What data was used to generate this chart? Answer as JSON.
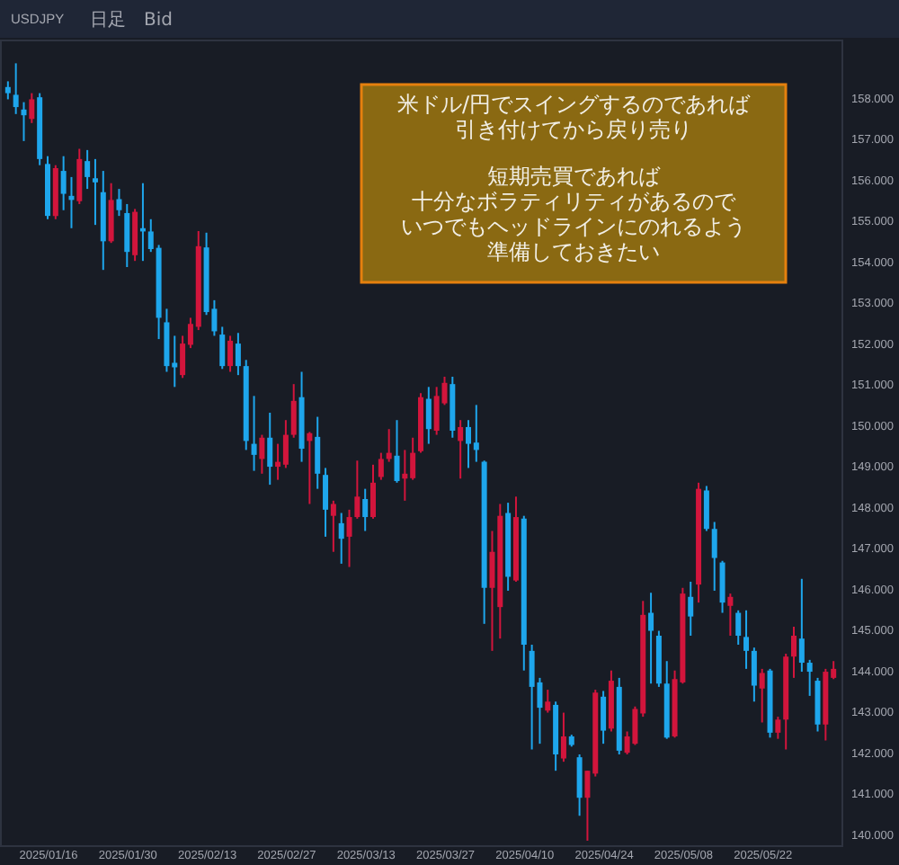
{
  "chart_data": {
    "type": "candlestick",
    "title": "USDJPY",
    "annotations": [
      "日足",
      "Bid",
      "米ドル/円でスイングするのであれば",
      "引き付けてから戻り売り",
      "短期売買であれば",
      "十分なボラティリティがあるので",
      "いつでもヘッドラインにのれるよう",
      "準備しておきたい"
    ],
    "categories": [
      null,
      null,
      null,
      null,
      null,
      "2025/01/16",
      null,
      null,
      null,
      null,
      null,
      null,
      null,
      null,
      null,
      "2025/01/30",
      null,
      null,
      null,
      null,
      null,
      null,
      null,
      null,
      null,
      "2025/02/13",
      null,
      null,
      null,
      null,
      null,
      null,
      null,
      null,
      null,
      "2025/02/27",
      null,
      null,
      null,
      null,
      null,
      null,
      null,
      null,
      null,
      "2025/03/13",
      null,
      null,
      null,
      null,
      null,
      null,
      null,
      null,
      null,
      "2025/03/27",
      null,
      null,
      null,
      null,
      null,
      null,
      null,
      null,
      null,
      "2025/04/10",
      null,
      null,
      null,
      null,
      null,
      null,
      null,
      null,
      null,
      "2025/04/24",
      null,
      null,
      null,
      null,
      null,
      null,
      null,
      null,
      null,
      "2025/05/08",
      null,
      null,
      null,
      null,
      null,
      null,
      null,
      null,
      null,
      "2025/05/22",
      null,
      null,
      null,
      null,
      null,
      null,
      null,
      null,
      null
    ],
    "ohlc": [
      [
        158.26,
        158.4,
        157.96,
        158.11
      ],
      [
        158.07,
        158.84,
        157.6,
        157.77
      ],
      [
        157.71,
        157.89,
        156.94,
        157.57
      ],
      [
        157.48,
        158.11,
        157.38,
        157.96
      ],
      [
        158.01,
        158.11,
        156.35,
        156.5
      ],
      [
        156.38,
        156.57,
        155.03,
        155.11
      ],
      [
        155.11,
        156.35,
        155.03,
        156.28
      ],
      [
        156.21,
        156.57,
        155.25,
        155.65
      ],
      [
        155.6,
        156.06,
        154.81,
        155.5
      ],
      [
        155.47,
        156.75,
        155.4,
        156.5
      ],
      [
        156.45,
        156.72,
        155.77,
        156.06
      ],
      [
        156.03,
        156.5,
        154.89,
        155.93
      ],
      [
        155.69,
        156.21,
        153.79,
        154.49
      ],
      [
        154.49,
        155.91,
        154.45,
        155.5
      ],
      [
        155.52,
        155.77,
        155.11,
        155.25
      ],
      [
        155.18,
        155.4,
        153.86,
        154.23
      ],
      [
        154.15,
        155.28,
        154.01,
        155.21
      ],
      [
        154.81,
        155.91,
        154.01,
        154.73
      ],
      [
        154.73,
        155.03,
        154.23,
        154.3
      ],
      [
        154.33,
        154.4,
        152.1,
        152.62
      ],
      [
        152.51,
        152.84,
        151.3,
        151.44
      ],
      [
        151.52,
        152.18,
        150.93,
        151.41
      ],
      [
        151.22,
        152.18,
        151.15,
        151.99
      ],
      [
        151.96,
        152.62,
        151.88,
        152.47
      ],
      [
        152.4,
        154.74,
        152.32,
        154.37
      ],
      [
        154.34,
        154.7,
        152.69,
        152.76
      ],
      [
        152.84,
        153.05,
        152.18,
        152.29
      ],
      [
        152.21,
        152.4,
        151.37,
        151.44
      ],
      [
        151.44,
        152.18,
        151.3,
        152.06
      ],
      [
        151.99,
        152.25,
        151.22,
        151.44
      ],
      [
        151.44,
        151.59,
        149.39,
        149.61
      ],
      [
        149.54,
        150.71,
        148.88,
        149.27
      ],
      [
        149.17,
        149.76,
        148.81,
        149.69
      ],
      [
        149.69,
        150.3,
        148.54,
        148.98
      ],
      [
        148.98,
        149.54,
        148.66,
        149.1
      ],
      [
        149.03,
        150.12,
        148.95,
        149.76
      ],
      [
        149.76,
        151.0,
        149.69,
        150.59
      ],
      [
        150.68,
        151.3,
        149.1,
        149.42
      ],
      [
        149.61,
        149.83,
        148.07,
        149.8
      ],
      [
        149.71,
        150.2,
        148.44,
        148.81
      ],
      [
        148.78,
        148.95,
        147.27,
        147.93
      ],
      [
        147.78,
        148.15,
        146.9,
        148.07
      ],
      [
        147.6,
        147.85,
        146.61,
        147.22
      ],
      [
        147.27,
        147.93,
        146.53,
        147.75
      ],
      [
        147.75,
        149.13,
        147.71,
        148.25
      ],
      [
        148.19,
        148.44,
        147.41,
        147.75
      ],
      [
        147.75,
        149.03,
        147.71,
        148.59
      ],
      [
        148.73,
        149.32,
        148.66,
        149.17
      ],
      [
        149.17,
        149.9,
        149.1,
        149.32
      ],
      [
        149.25,
        150.12,
        148.59,
        148.63
      ],
      [
        148.69,
        149.39,
        148.15,
        148.81
      ],
      [
        148.7,
        149.69,
        148.66,
        149.32
      ],
      [
        149.36,
        150.78,
        149.32,
        150.68
      ],
      [
        150.64,
        150.93,
        149.54,
        149.9
      ],
      [
        149.86,
        150.93,
        149.76,
        150.71
      ],
      [
        150.53,
        151.18,
        150.49,
        151.03
      ],
      [
        151.0,
        151.18,
        149.69,
        149.86
      ],
      [
        149.61,
        150.12,
        148.69,
        149.95
      ],
      [
        149.95,
        150.12,
        148.95,
        149.54
      ],
      [
        149.57,
        150.49,
        149.1,
        149.39
      ],
      [
        149.1,
        149.13,
        145.14,
        146.02
      ],
      [
        146.02,
        147.41,
        144.48,
        146.9
      ],
      [
        145.55,
        148.07,
        144.78,
        147.78
      ],
      [
        147.85,
        148.1,
        145.95,
        146.29
      ],
      [
        146.2,
        148.25,
        146.17,
        147.75
      ],
      [
        147.71,
        147.78,
        144.0,
        144.63
      ],
      [
        144.48,
        144.63,
        142.07,
        143.6
      ],
      [
        143.71,
        143.82,
        142.21,
        143.09
      ],
      [
        143.02,
        143.53,
        142.97,
        143.24
      ],
      [
        143.16,
        143.24,
        141.55,
        141.95
      ],
      [
        141.85,
        142.97,
        141.77,
        142.39
      ],
      [
        142.39,
        142.43,
        142.14,
        142.18
      ],
      [
        141.88,
        141.95,
        140.45,
        140.89
      ],
      [
        140.89,
        141.55,
        139.84,
        141.55
      ],
      [
        141.48,
        143.53,
        141.41,
        143.46
      ],
      [
        143.36,
        143.5,
        142.21,
        142.53
      ],
      [
        142.58,
        144.0,
        142.51,
        143.75
      ],
      [
        143.6,
        143.82,
        141.95,
        142.04
      ],
      [
        141.99,
        142.51,
        141.95,
        142.39
      ],
      [
        142.21,
        143.12,
        142.18,
        143.06
      ],
      [
        142.95,
        145.7,
        142.87,
        145.36
      ],
      [
        145.41,
        145.9,
        143.68,
        144.97
      ],
      [
        144.85,
        144.97,
        143.6,
        143.68
      ],
      [
        143.68,
        144.23,
        142.33,
        142.36
      ],
      [
        142.39,
        144.0,
        142.36,
        143.79
      ],
      [
        143.71,
        146.02,
        143.68,
        145.88
      ],
      [
        145.8,
        146.17,
        144.85,
        145.32
      ],
      [
        146.1,
        148.59,
        145.66,
        148.44
      ],
      [
        148.4,
        148.51,
        147.41,
        147.46
      ],
      [
        147.46,
        147.63,
        145.95,
        146.75
      ],
      [
        146.64,
        146.68,
        145.41,
        145.66
      ],
      [
        145.58,
        145.88,
        144.85,
        145.8
      ],
      [
        145.41,
        145.47,
        144.63,
        144.85
      ],
      [
        144.82,
        145.47,
        144.04,
        144.48
      ],
      [
        144.48,
        144.56,
        143.24,
        143.63
      ],
      [
        143.56,
        144.04,
        142.73,
        143.94
      ],
      [
        144.0,
        144.04,
        142.36,
        142.48
      ],
      [
        142.48,
        142.87,
        142.33,
        142.8
      ],
      [
        142.8,
        144.41,
        142.07,
        144.34
      ],
      [
        144.34,
        145.07,
        143.82,
        144.85
      ],
      [
        144.78,
        146.24,
        143.97,
        144.19
      ],
      [
        144.19,
        144.26,
        143.38,
        143.97
      ],
      [
        143.75,
        143.82,
        142.51,
        142.68
      ],
      [
        142.68,
        144.04,
        142.29,
        143.97
      ],
      [
        143.82,
        144.23,
        143.79,
        144.04
      ]
    ],
    "colors": [
      "#1ea6ec",
      "#1ea6ec",
      "#1ea6ec",
      "#d2153c",
      "#1ea6ec",
      "#1ea6ec",
      "#d2153c",
      "#1ea6ec",
      "#1ea6ec",
      "#d2153c",
      "#1ea6ec",
      "#1ea6ec",
      "#1ea6ec",
      "#d2153c",
      "#1ea6ec",
      "#1ea6ec",
      "#d2153c",
      "#1ea6ec",
      "#1ea6ec",
      "#1ea6ec",
      "#1ea6ec",
      "#1ea6ec",
      "#d2153c",
      "#d2153c",
      "#d2153c",
      "#1ea6ec",
      "#1ea6ec",
      "#1ea6ec",
      "#d2153c",
      "#1ea6ec",
      "#1ea6ec",
      "#1ea6ec",
      "#d2153c",
      "#1ea6ec",
      "#d2153c",
      "#d2153c",
      "#d2153c",
      "#1ea6ec",
      "#d2153c",
      "#1ea6ec",
      "#1ea6ec",
      "#d2153c",
      "#1ea6ec",
      "#d2153c",
      "#d2153c",
      "#1ea6ec",
      "#d2153c",
      "#d2153c",
      "#d2153c",
      "#1ea6ec",
      "#d2153c",
      "#d2153c",
      "#d2153c",
      "#1ea6ec",
      "#d2153c",
      "#d2153c",
      "#1ea6ec",
      "#d2153c",
      "#1ea6ec",
      "#1ea6ec",
      "#1ea6ec",
      "#d2153c",
      "#d2153c",
      "#1ea6ec",
      "#d2153c",
      "#1ea6ec",
      "#1ea6ec",
      "#1ea6ec",
      "#d2153c",
      "#1ea6ec",
      "#d2153c",
      "#1ea6ec",
      "#1ea6ec",
      "#d2153c",
      "#d2153c",
      "#1ea6ec",
      "#d2153c",
      "#1ea6ec",
      "#d2153c",
      "#d2153c",
      "#d2153c",
      "#1ea6ec",
      "#1ea6ec",
      "#1ea6ec",
      "#d2153c",
      "#d2153c",
      "#1ea6ec",
      "#d2153c",
      "#1ea6ec",
      "#1ea6ec",
      "#1ea6ec",
      "#d2153c",
      "#1ea6ec",
      "#1ea6ec",
      "#1ea6ec",
      "#d2153c",
      "#1ea6ec",
      "#d2153c",
      "#d2153c",
      "#d2153c",
      "#1ea6ec",
      "#1ea6ec",
      "#1ea6ec",
      "#d2153c",
      "#d2153c"
    ],
    "ylim": [
      139.73,
      159.42
    ],
    "yticks": [
      {
        "value": 140,
        "label": "140.000"
      },
      {
        "value": 141,
        "label": "141.000"
      },
      {
        "value": 142,
        "label": "142.000"
      },
      {
        "value": 143,
        "label": "143.000"
      },
      {
        "value": 144,
        "label": "144.000"
      },
      {
        "value": 145,
        "label": "145.000"
      },
      {
        "value": 146,
        "label": "146.000"
      },
      {
        "value": 147,
        "label": "147.000"
      },
      {
        "value": 148,
        "label": "148.000"
      },
      {
        "value": 149,
        "label": "149.000"
      },
      {
        "value": 150,
        "label": "150.000"
      },
      {
        "value": 151,
        "label": "151.000"
      },
      {
        "value": 152,
        "label": "152.000"
      },
      {
        "value": 153,
        "label": "153.000"
      },
      {
        "value": 154,
        "label": "154.000"
      },
      {
        "value": 155,
        "label": "155.000"
      },
      {
        "value": 156,
        "label": "156.000"
      },
      {
        "value": 157,
        "label": "157.000"
      },
      {
        "value": 158,
        "label": "158.000"
      }
    ],
    "grid": false
  }
}
